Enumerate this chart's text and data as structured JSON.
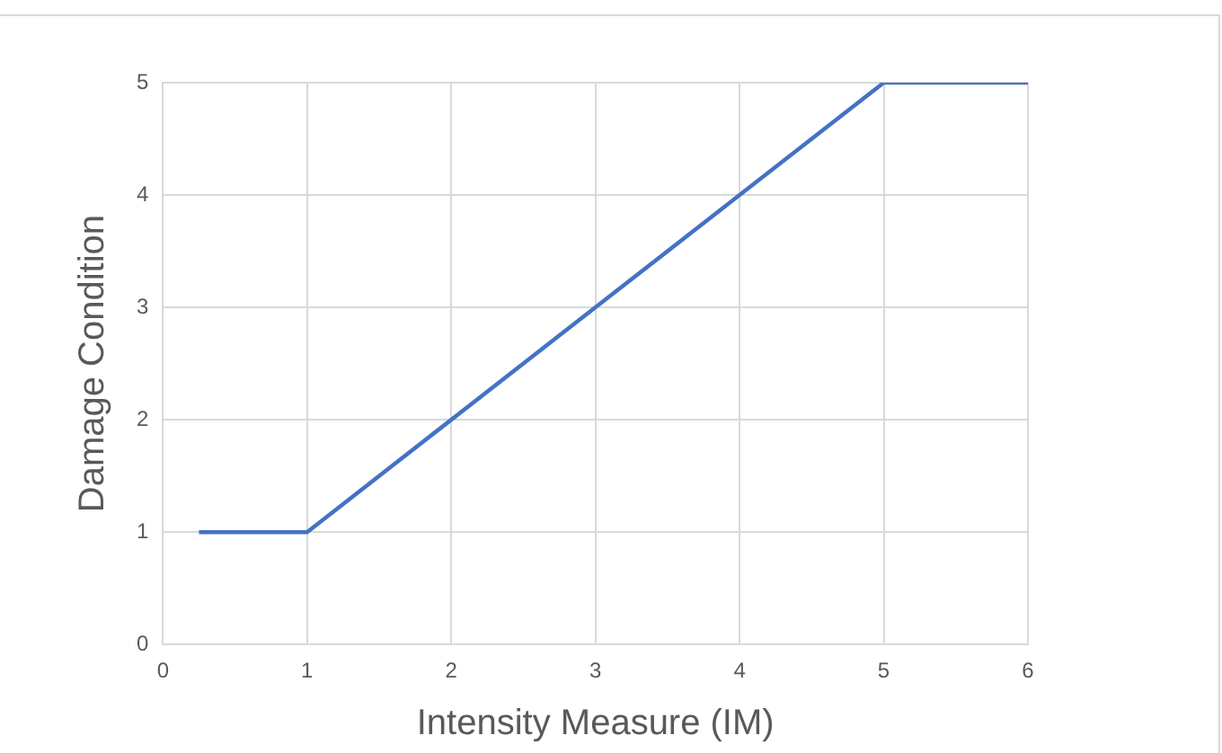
{
  "chart_data": {
    "type": "line",
    "xlabel": "Intensity Measure (IM)",
    "ylabel": "Damage Condition",
    "x": [
      0.25,
      1,
      2,
      3,
      4,
      4.25,
      4.5,
      5,
      6
    ],
    "series": [
      {
        "color": "#4472c4",
        "values": [
          1,
          1,
          2,
          3,
          4,
          4.25,
          4.5,
          5,
          5
        ]
      }
    ],
    "xlim": [
      0,
      6
    ],
    "xticks": [
      0,
      1,
      2,
      3,
      4,
      5,
      6
    ],
    "ylim": [
      0,
      5
    ],
    "yticks": [
      0,
      1,
      2,
      3,
      4,
      5
    ],
    "grid": true,
    "legend": false,
    "marker": "none",
    "line_style": "solid"
  }
}
